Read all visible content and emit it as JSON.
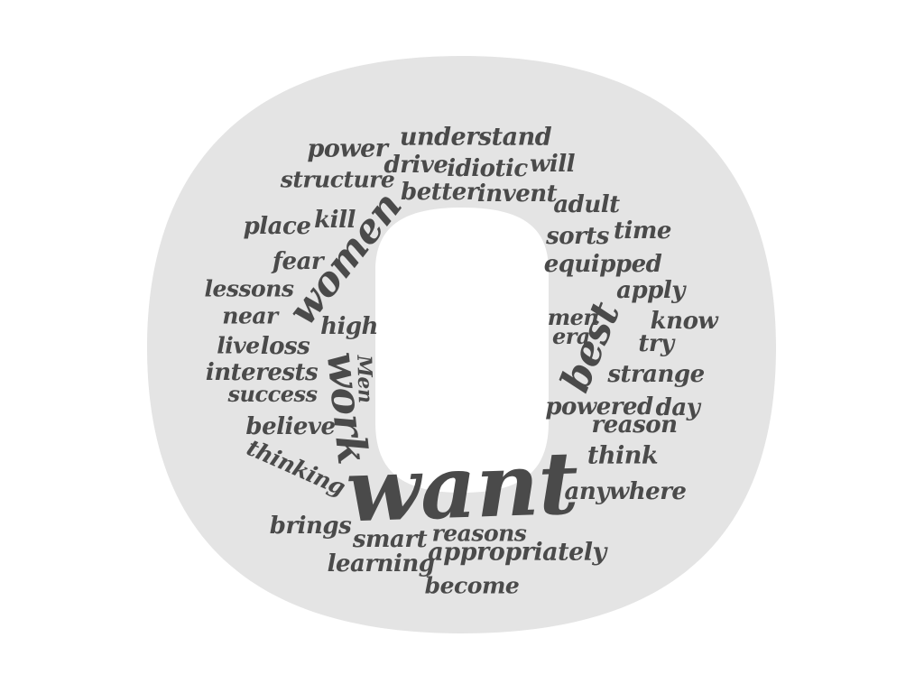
{
  "colors": {
    "background": "#ffffff",
    "shape_fill": "#e4e4e4",
    "text": "#4a4a4a"
  },
  "cloud": {
    "want": "want",
    "work": "work",
    "women": "women",
    "best": "best",
    "men_cap": "Men",
    "understand": "understand",
    "power": "power",
    "drive": "drive",
    "idiotic": "idiotic",
    "will": "will",
    "structure": "structure",
    "better": "better",
    "invent": "invent",
    "adult": "adult",
    "place": "place",
    "kill": "kill",
    "sorts": "sorts",
    "time": "time",
    "fear": "fear",
    "equipped": "equipped",
    "lessons": "lessons",
    "apply": "apply",
    "near": "near",
    "high": "high",
    "men": "men",
    "know": "know",
    "era": "era",
    "try": "try",
    "live": "live",
    "loss": "loss",
    "interests": "interests",
    "strange": "strange",
    "success": "success",
    "powered": "powered",
    "day": "day",
    "believe": "believe",
    "reason": "reason",
    "thinking": "thinking",
    "think": "think",
    "anywhere": "anywhere",
    "brings": "brings",
    "reasons": "reasons",
    "smart": "smart",
    "learning": "learning",
    "appropriately": "appropriately",
    "become": "become"
  }
}
